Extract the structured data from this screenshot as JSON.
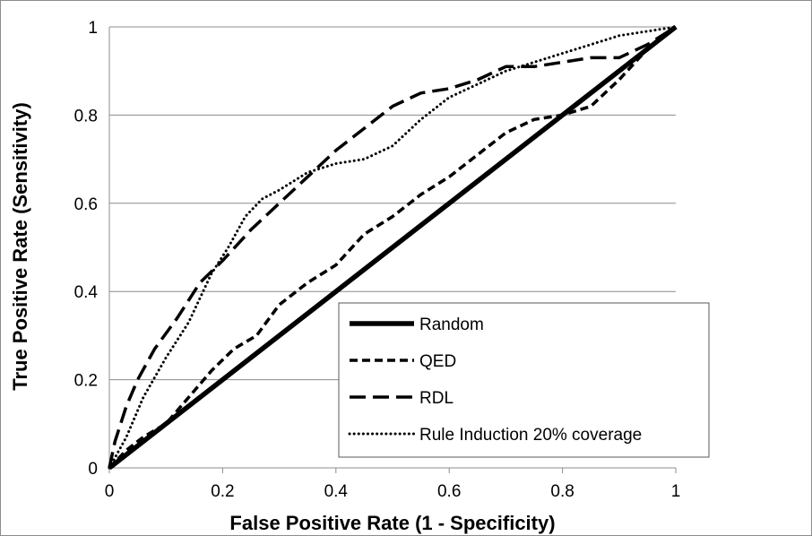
{
  "chart_data": {
    "type": "line",
    "title": "",
    "xlabel": "False Positive Rate (1 - Specificity)",
    "ylabel": "True Positive Rate (Sensitivity)",
    "xlim": [
      0,
      1
    ],
    "ylim": [
      0,
      1
    ],
    "x_ticks": [
      "0",
      "0.2",
      "0.4",
      "0.6",
      "0.8",
      "1"
    ],
    "y_ticks": [
      "0",
      "0.2",
      "0.4",
      "0.6",
      "0.8",
      "1"
    ],
    "grid": "horizontal",
    "legend_position": "bottom-right",
    "colors": {
      "series": "#000000",
      "grid": "#8c8c8c"
    },
    "series": [
      {
        "name": "Random",
        "style": "solid-thick",
        "points": [
          [
            0,
            0
          ],
          [
            1,
            1
          ]
        ]
      },
      {
        "name": "QED",
        "style": "short-dash",
        "points": [
          [
            0,
            0
          ],
          [
            0.03,
            0.04
          ],
          [
            0.06,
            0.07
          ],
          [
            0.1,
            0.1
          ],
          [
            0.14,
            0.16
          ],
          [
            0.18,
            0.22
          ],
          [
            0.22,
            0.27
          ],
          [
            0.26,
            0.3
          ],
          [
            0.3,
            0.37
          ],
          [
            0.35,
            0.42
          ],
          [
            0.4,
            0.46
          ],
          [
            0.45,
            0.53
          ],
          [
            0.5,
            0.57
          ],
          [
            0.55,
            0.62
          ],
          [
            0.6,
            0.66
          ],
          [
            0.65,
            0.71
          ],
          [
            0.7,
            0.76
          ],
          [
            0.75,
            0.79
          ],
          [
            0.8,
            0.8
          ],
          [
            0.85,
            0.82
          ],
          [
            0.9,
            0.88
          ],
          [
            0.95,
            0.95
          ],
          [
            1,
            1
          ]
        ]
      },
      {
        "name": "RDL",
        "style": "long-dash",
        "points": [
          [
            0,
            0
          ],
          [
            0.01,
            0.06
          ],
          [
            0.03,
            0.14
          ],
          [
            0.05,
            0.2
          ],
          [
            0.08,
            0.27
          ],
          [
            0.12,
            0.34
          ],
          [
            0.16,
            0.42
          ],
          [
            0.2,
            0.47
          ],
          [
            0.25,
            0.54
          ],
          [
            0.3,
            0.6
          ],
          [
            0.35,
            0.66
          ],
          [
            0.4,
            0.72
          ],
          [
            0.45,
            0.77
          ],
          [
            0.5,
            0.82
          ],
          [
            0.55,
            0.85
          ],
          [
            0.6,
            0.86
          ],
          [
            0.65,
            0.88
          ],
          [
            0.7,
            0.91
          ],
          [
            0.75,
            0.91
          ],
          [
            0.8,
            0.92
          ],
          [
            0.85,
            0.93
          ],
          [
            0.9,
            0.93
          ],
          [
            0.95,
            0.96
          ],
          [
            1,
            1
          ]
        ]
      },
      {
        "name": "Rule Induction 20% coverage",
        "style": "dotted",
        "points": [
          [
            0,
            0
          ],
          [
            0.03,
            0.07
          ],
          [
            0.06,
            0.16
          ],
          [
            0.1,
            0.25
          ],
          [
            0.14,
            0.33
          ],
          [
            0.18,
            0.44
          ],
          [
            0.21,
            0.5
          ],
          [
            0.24,
            0.57
          ],
          [
            0.27,
            0.61
          ],
          [
            0.3,
            0.63
          ],
          [
            0.35,
            0.67
          ],
          [
            0.4,
            0.69
          ],
          [
            0.45,
            0.7
          ],
          [
            0.5,
            0.73
          ],
          [
            0.55,
            0.79
          ],
          [
            0.6,
            0.84
          ],
          [
            0.65,
            0.87
          ],
          [
            0.7,
            0.9
          ],
          [
            0.75,
            0.92
          ],
          [
            0.8,
            0.94
          ],
          [
            0.85,
            0.96
          ],
          [
            0.9,
            0.98
          ],
          [
            0.95,
            0.99
          ],
          [
            1,
            1
          ]
        ]
      }
    ]
  }
}
